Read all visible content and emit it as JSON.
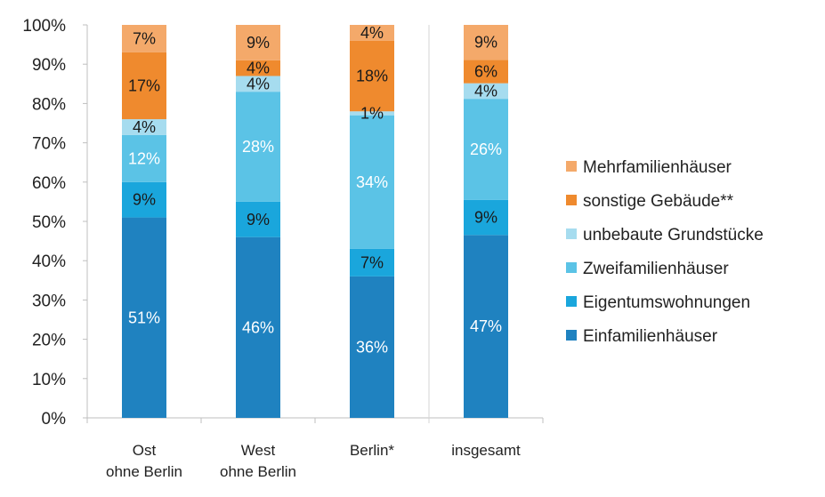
{
  "chart_data": {
    "type": "bar",
    "stacked": true,
    "y_unit": "%",
    "ylim": [
      0,
      100
    ],
    "y_ticks": [
      "0%",
      "10%",
      "20%",
      "30%",
      "40%",
      "50%",
      "60%",
      "70%",
      "80%",
      "90%",
      "100%"
    ],
    "grid": false,
    "legend_position": "right",
    "categories": [
      [
        "Ost",
        "ohne Berlin"
      ],
      [
        "West",
        "ohne Berlin"
      ],
      [
        "Berlin*"
      ],
      [
        "insgesamt"
      ]
    ],
    "series": [
      {
        "name": "Einfamilienhäuser",
        "color": "#1f82c0",
        "label_color": "#ffffff",
        "values": [
          51,
          46,
          36,
          47
        ],
        "labels": [
          "51%",
          "46%",
          "36%",
          "47%"
        ]
      },
      {
        "name": "Eigentumswohnungen",
        "color": "#1aa6dc",
        "label_color": "#1a1a1a",
        "values": [
          9,
          9,
          7,
          9
        ],
        "labels": [
          "9%",
          "9%",
          "7%",
          "9%"
        ]
      },
      {
        "name": "Zweifamilienhäuser",
        "color": "#5bc3e6",
        "label_color": "#ffffff",
        "values": [
          12,
          28,
          34,
          26
        ],
        "labels": [
          "12%",
          "28%",
          "34%",
          "26%"
        ]
      },
      {
        "name": "unbebaute Grundstücke",
        "color": "#a6dcef",
        "label_color": "#1a1a1a",
        "values": [
          4,
          4,
          1,
          4
        ],
        "labels": [
          "4%",
          "4%",
          "1%",
          "4%"
        ]
      },
      {
        "name": "sonstige Gebäude**",
        "color": "#ef8a2e",
        "label_color": "#1a1a1a",
        "values": [
          17,
          4,
          18,
          6
        ],
        "labels": [
          "17%",
          "4%",
          "18%",
          "6%"
        ]
      },
      {
        "name": "Mehrfamilienhäuser",
        "color": "#f4a96a",
        "label_color": "#1a1a1a",
        "values": [
          7,
          9,
          4,
          9
        ],
        "labels": [
          "7%",
          "9%",
          "4%",
          "9%"
        ]
      }
    ]
  }
}
